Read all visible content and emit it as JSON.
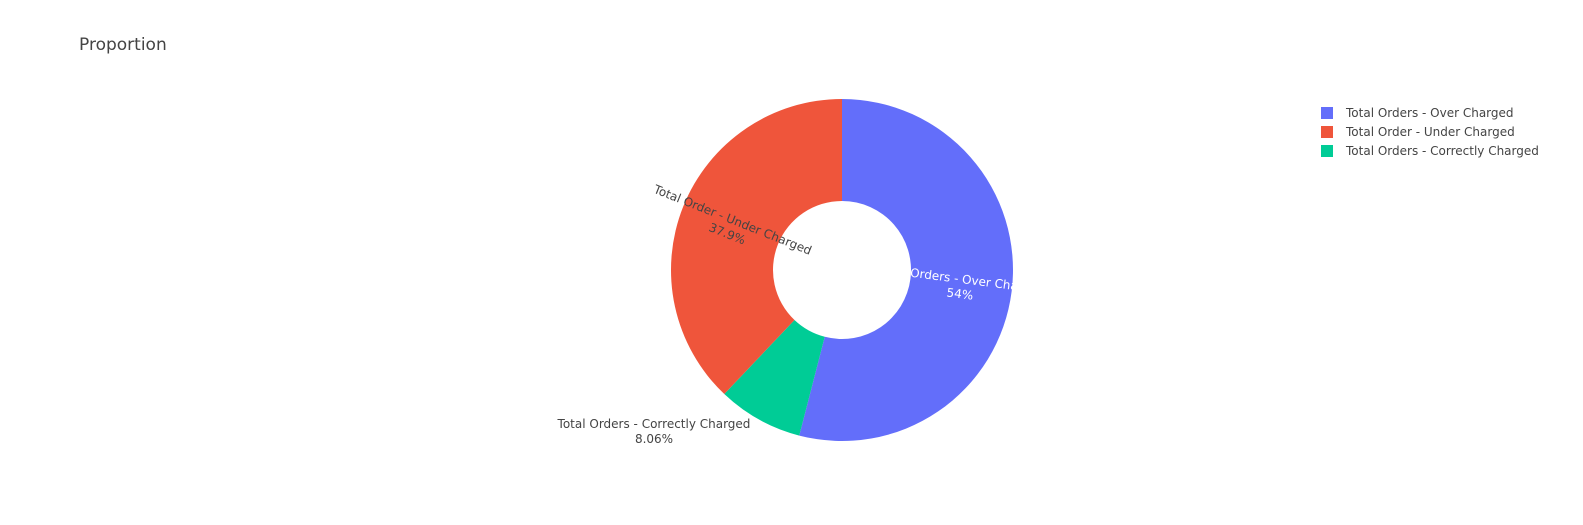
{
  "chart_data": {
    "type": "pie",
    "title": "Proportion",
    "hole": true,
    "sort": "descending",
    "direction": "clockwise",
    "legend_position": "top-right",
    "slices": [
      {
        "label": "Total Orders - Over Charged",
        "value": 54,
        "percent_text": "54%",
        "color": "#636efa",
        "label_color": "#ffffff"
      },
      {
        "label": "Total Orders - Correctly Charged",
        "value": 8.06,
        "percent_text": "8.06%",
        "color": "#00cc96",
        "label_color": "#444444"
      },
      {
        "label": "Total Order - Under Charged",
        "value": 37.9,
        "percent_text": "37.9%",
        "color": "#ef553b",
        "label_color": "#444444"
      }
    ],
    "legend": [
      {
        "label": "Total Orders - Over Charged",
        "color": "#636efa"
      },
      {
        "label": "Total Order - Under Charged",
        "color": "#ef553b"
      },
      {
        "label": "Total Orders - Correctly Charged",
        "color": "#00cc96"
      }
    ]
  }
}
